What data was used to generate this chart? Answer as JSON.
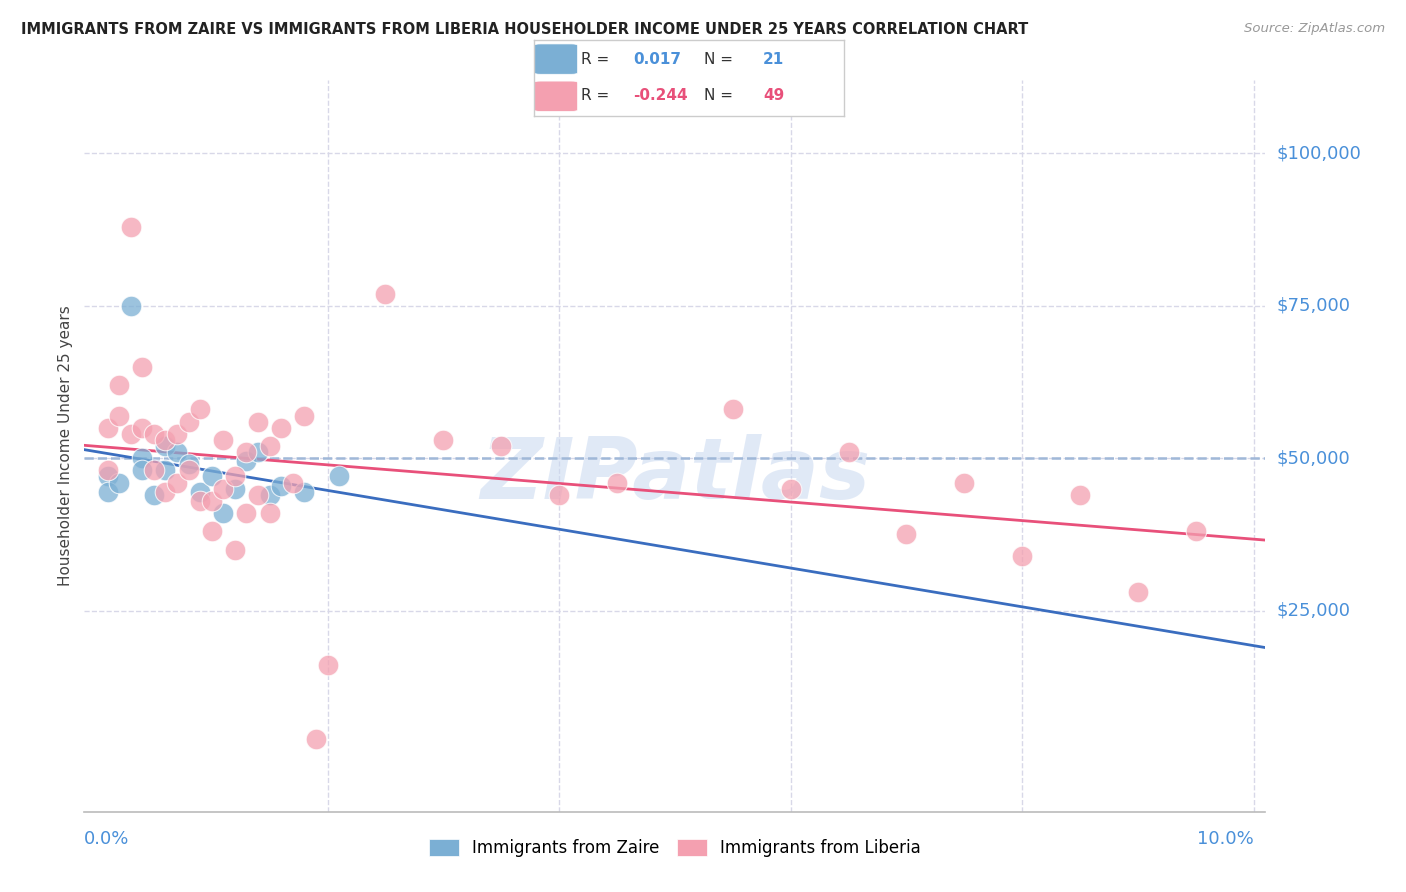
{
  "title": "IMMIGRANTS FROM ZAIRE VS IMMIGRANTS FROM LIBERIA HOUSEHOLDER INCOME UNDER 25 YEARS CORRELATION CHART",
  "source": "Source: ZipAtlas.com",
  "ylabel": "Householder Income Under 25 years",
  "zaire_color": "#7bafd4",
  "liberia_color": "#f4a0b0",
  "line_zaire_color": "#3a6dbf",
  "line_liberia_color": "#e8507a",
  "dashed_line_color": "#a0b8d8",
  "grid_color": "#d8d8e8",
  "right_label_color": "#4a90d9",
  "watermark": "ZIPatlas",
  "zaire_x": [
    0.001,
    0.001,
    0.002,
    0.003,
    0.004,
    0.004,
    0.005,
    0.006,
    0.006,
    0.007,
    0.008,
    0.009,
    0.01,
    0.011,
    0.012,
    0.013,
    0.014,
    0.015,
    0.016,
    0.018,
    0.021
  ],
  "zaire_y": [
    47000,
    44500,
    46000,
    75000,
    50000,
    48000,
    44000,
    52000,
    48000,
    51000,
    49000,
    44500,
    47000,
    41000,
    45000,
    49500,
    51000,
    44000,
    45500,
    44500,
    47000
  ],
  "liberia_x": [
    0.001,
    0.001,
    0.002,
    0.002,
    0.003,
    0.003,
    0.004,
    0.004,
    0.005,
    0.005,
    0.006,
    0.006,
    0.007,
    0.007,
    0.008,
    0.008,
    0.009,
    0.009,
    0.01,
    0.01,
    0.011,
    0.011,
    0.012,
    0.012,
    0.013,
    0.013,
    0.014,
    0.014,
    0.015,
    0.015,
    0.016,
    0.017,
    0.018,
    0.019,
    0.02,
    0.025,
    0.03,
    0.035,
    0.04,
    0.045,
    0.055,
    0.06,
    0.065,
    0.07,
    0.075,
    0.08,
    0.085,
    0.09,
    0.095
  ],
  "liberia_y": [
    55000,
    48000,
    62000,
    57000,
    88000,
    54000,
    55000,
    65000,
    54000,
    48000,
    53000,
    44500,
    54000,
    46000,
    56000,
    48000,
    58000,
    43000,
    43000,
    38000,
    53000,
    45000,
    47000,
    35000,
    51000,
    41000,
    56000,
    44000,
    52000,
    41000,
    55000,
    46000,
    57000,
    4000,
    16000,
    77000,
    53000,
    52000,
    44000,
    46000,
    58000,
    45000,
    51000,
    37500,
    46000,
    34000,
    44000,
    28000,
    38000
  ],
  "ytick_positions": [
    0,
    25000,
    50000,
    75000,
    100000
  ],
  "ytick_labels": [
    "",
    "$25,000",
    "$50,000",
    "$75,000",
    "$100,000"
  ],
  "xlim": [
    -0.001,
    0.101
  ],
  "ylim": [
    -8000,
    112000
  ],
  "legend_r_zaire": "0.017",
  "legend_n_zaire": "21",
  "legend_r_liberia": "-0.244",
  "legend_n_liberia": "49"
}
